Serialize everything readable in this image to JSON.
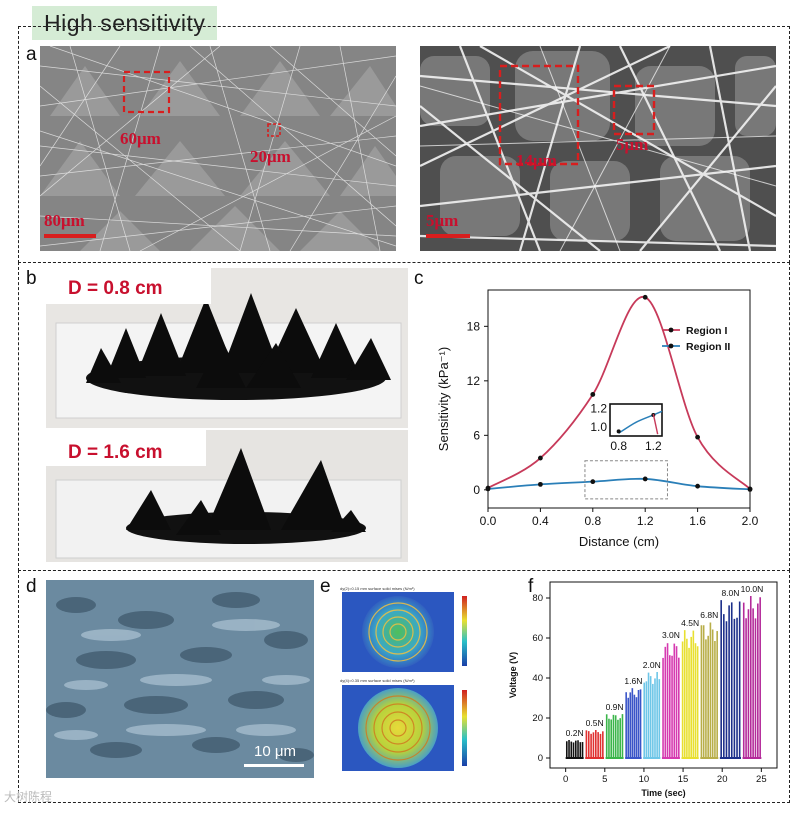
{
  "header": {
    "title": "High sensitivity"
  },
  "panels": {
    "a": "a",
    "b": "b",
    "c": "c",
    "d": "d",
    "e": "e",
    "f": "f"
  },
  "panel_a": {
    "left": {
      "box1_label": "60μm",
      "box2_label": "20μm",
      "scalebar": "80μm"
    },
    "right": {
      "box1_label": "14μm",
      "box2_label": "5μm",
      "scalebar": "5μm"
    }
  },
  "panel_b": {
    "top_label": "D = 0.8 cm",
    "bottom_label": "D = 1.6 cm"
  },
  "panel_d": {
    "scalebar": "10 μm"
  },
  "panel_e": {
    "top_caption": "dy(2)=0.15 mm     surface     solid mises (N/m²)",
    "bottom_caption": "dy(4)=0.35 mm     surface     solid mises (N/m²)"
  },
  "watermark": "大树陈程",
  "chart_data": [
    {
      "panel": "c",
      "type": "line",
      "xlabel": "Distance (cm)",
      "ylabel": "Sensitivity (kPa⁻¹)",
      "xlim": [
        0,
        2.0
      ],
      "ylim": [
        -2,
        22
      ],
      "xticks": [
        "0.0",
        "0.4",
        "0.8",
        "1.2",
        "1.6",
        "2.0"
      ],
      "yticks": [
        "0",
        "6",
        "12",
        "18"
      ],
      "legend_position": "top-right",
      "series": [
        {
          "name": "Region I",
          "color": "#c73a5a",
          "x": [
            0.0,
            0.4,
            0.8,
            1.2,
            1.6,
            2.0
          ],
          "y": [
            0.2,
            3.5,
            10.5,
            21.2,
            5.8,
            0.1
          ]
        },
        {
          "name": "Region II",
          "color": "#2a7fb8",
          "x": [
            0.0,
            0.4,
            0.8,
            1.2,
            1.6,
            2.0
          ],
          "y": [
            0.1,
            0.6,
            0.9,
            1.2,
            0.4,
            0.05
          ]
        }
      ],
      "inset": {
        "xticks": [
          "0.8",
          "1.2"
        ],
        "yticks": [
          "1.0",
          "1.2"
        ],
        "x": [
          0.8,
          1.0,
          1.2,
          1.3
        ],
        "y": [
          0.93,
          1.05,
          1.13,
          1.17
        ],
        "highlight": [
          1.2,
          1.25
        ]
      }
    },
    {
      "panel": "f",
      "type": "bar",
      "xlabel": "Time (sec)",
      "ylabel": "Voltage (V)",
      "xlim": [
        -2,
        27
      ],
      "ylim": [
        -5,
        88
      ],
      "xticks": [
        "0",
        "5",
        "10",
        "15",
        "20",
        "25"
      ],
      "yticks": [
        "0",
        "20",
        "40",
        "60",
        "80"
      ],
      "groups": [
        {
          "label": "0.2N",
          "start": 0.0,
          "end": 2.3,
          "value": 9,
          "color": "#111111"
        },
        {
          "label": "0.5N",
          "start": 2.5,
          "end": 4.9,
          "value": 14,
          "color": "#e03030"
        },
        {
          "label": "0.9N",
          "start": 5.1,
          "end": 7.4,
          "value": 22,
          "color": "#3ab54a"
        },
        {
          "label": "1.6N",
          "start": 7.6,
          "end": 9.7,
          "value": 35,
          "color": "#3a55c8"
        },
        {
          "label": "2.0N",
          "start": 9.9,
          "end": 12.1,
          "value": 43,
          "color": "#6ec6e8"
        },
        {
          "label": "3.0N",
          "start": 12.3,
          "end": 14.6,
          "value": 58,
          "color": "#d63ab0"
        },
        {
          "label": "4.5N",
          "start": 14.8,
          "end": 17.0,
          "value": 64,
          "color": "#e8e030"
        },
        {
          "label": "6.8N",
          "start": 17.2,
          "end": 19.5,
          "value": 68,
          "color": "#b8ae48"
        },
        {
          "label": "8.0N",
          "start": 19.7,
          "end": 22.4,
          "value": 79,
          "color": "#1c2f8a"
        },
        {
          "label": "10.0N",
          "start": 22.6,
          "end": 25.0,
          "value": 81,
          "color": "#b42a9a"
        }
      ]
    }
  ]
}
